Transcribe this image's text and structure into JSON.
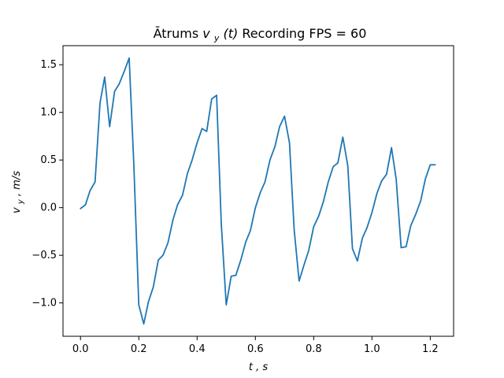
{
  "chart_data": {
    "type": "line",
    "title": {
      "prefix": "Ātrums ",
      "symbol": "v",
      "subscript": "y",
      "argument": "(t)",
      "suffix": " Recording FPS = 60"
    },
    "xlabel": {
      "symbol": "t",
      "unit": ", s"
    },
    "ylabel": {
      "symbol": "v",
      "subscript": "y",
      "unit": ", m/s"
    },
    "xlim": [
      -0.06,
      1.28
    ],
    "ylim": [
      -1.35,
      1.7
    ],
    "xticks": [
      0.0,
      0.2,
      0.4,
      0.6,
      0.8,
      1.0,
      1.2
    ],
    "xtick_labels": [
      "0.0",
      "0.2",
      "0.4",
      "0.6",
      "0.8",
      "1.0",
      "1.2"
    ],
    "yticks": [
      -1.0,
      -0.5,
      0.0,
      0.5,
      1.0,
      1.5
    ],
    "ytick_labels": [
      "−1.0",
      "−0.5",
      "0.0",
      "0.5",
      "1.0",
      "1.5"
    ],
    "grid": false,
    "series": [
      {
        "color": "#1f77b4",
        "x": [
          0.0,
          0.017,
          0.033,
          0.05,
          0.067,
          0.083,
          0.1,
          0.117,
          0.133,
          0.15,
          0.167,
          0.183,
          0.2,
          0.217,
          0.233,
          0.25,
          0.267,
          0.283,
          0.3,
          0.317,
          0.333,
          0.35,
          0.367,
          0.383,
          0.4,
          0.417,
          0.433,
          0.45,
          0.467,
          0.483,
          0.5,
          0.517,
          0.533,
          0.55,
          0.567,
          0.583,
          0.6,
          0.617,
          0.633,
          0.65,
          0.667,
          0.683,
          0.7,
          0.717,
          0.733,
          0.75,
          0.767,
          0.783,
          0.8,
          0.817,
          0.833,
          0.85,
          0.867,
          0.883,
          0.9,
          0.917,
          0.933,
          0.95,
          0.967,
          0.983,
          1.0,
          1.017,
          1.033,
          1.05,
          1.067,
          1.083,
          1.1,
          1.117,
          1.133,
          1.15,
          1.167,
          1.183,
          1.2,
          1.217
        ],
        "y": [
          -0.01,
          0.03,
          0.18,
          0.27,
          1.1,
          1.37,
          0.85,
          1.22,
          1.3,
          1.43,
          1.57,
          0.45,
          -1.02,
          -1.22,
          -0.99,
          -0.83,
          -0.55,
          -0.5,
          -0.37,
          -0.13,
          0.03,
          0.13,
          0.36,
          0.5,
          0.68,
          0.83,
          0.8,
          1.14,
          1.18,
          -0.17,
          -1.02,
          -0.72,
          -0.71,
          -0.55,
          -0.36,
          -0.24,
          0.0,
          0.16,
          0.27,
          0.5,
          0.64,
          0.85,
          0.96,
          0.68,
          -0.23,
          -0.77,
          -0.6,
          -0.45,
          -0.2,
          -0.09,
          0.06,
          0.27,
          0.43,
          0.47,
          0.74,
          0.44,
          -0.43,
          -0.56,
          -0.32,
          -0.21,
          -0.05,
          0.15,
          0.28,
          0.35,
          0.63,
          0.3,
          -0.42,
          -0.41,
          -0.19,
          -0.07,
          0.07,
          0.3,
          0.45,
          0.45
        ]
      }
    ]
  }
}
